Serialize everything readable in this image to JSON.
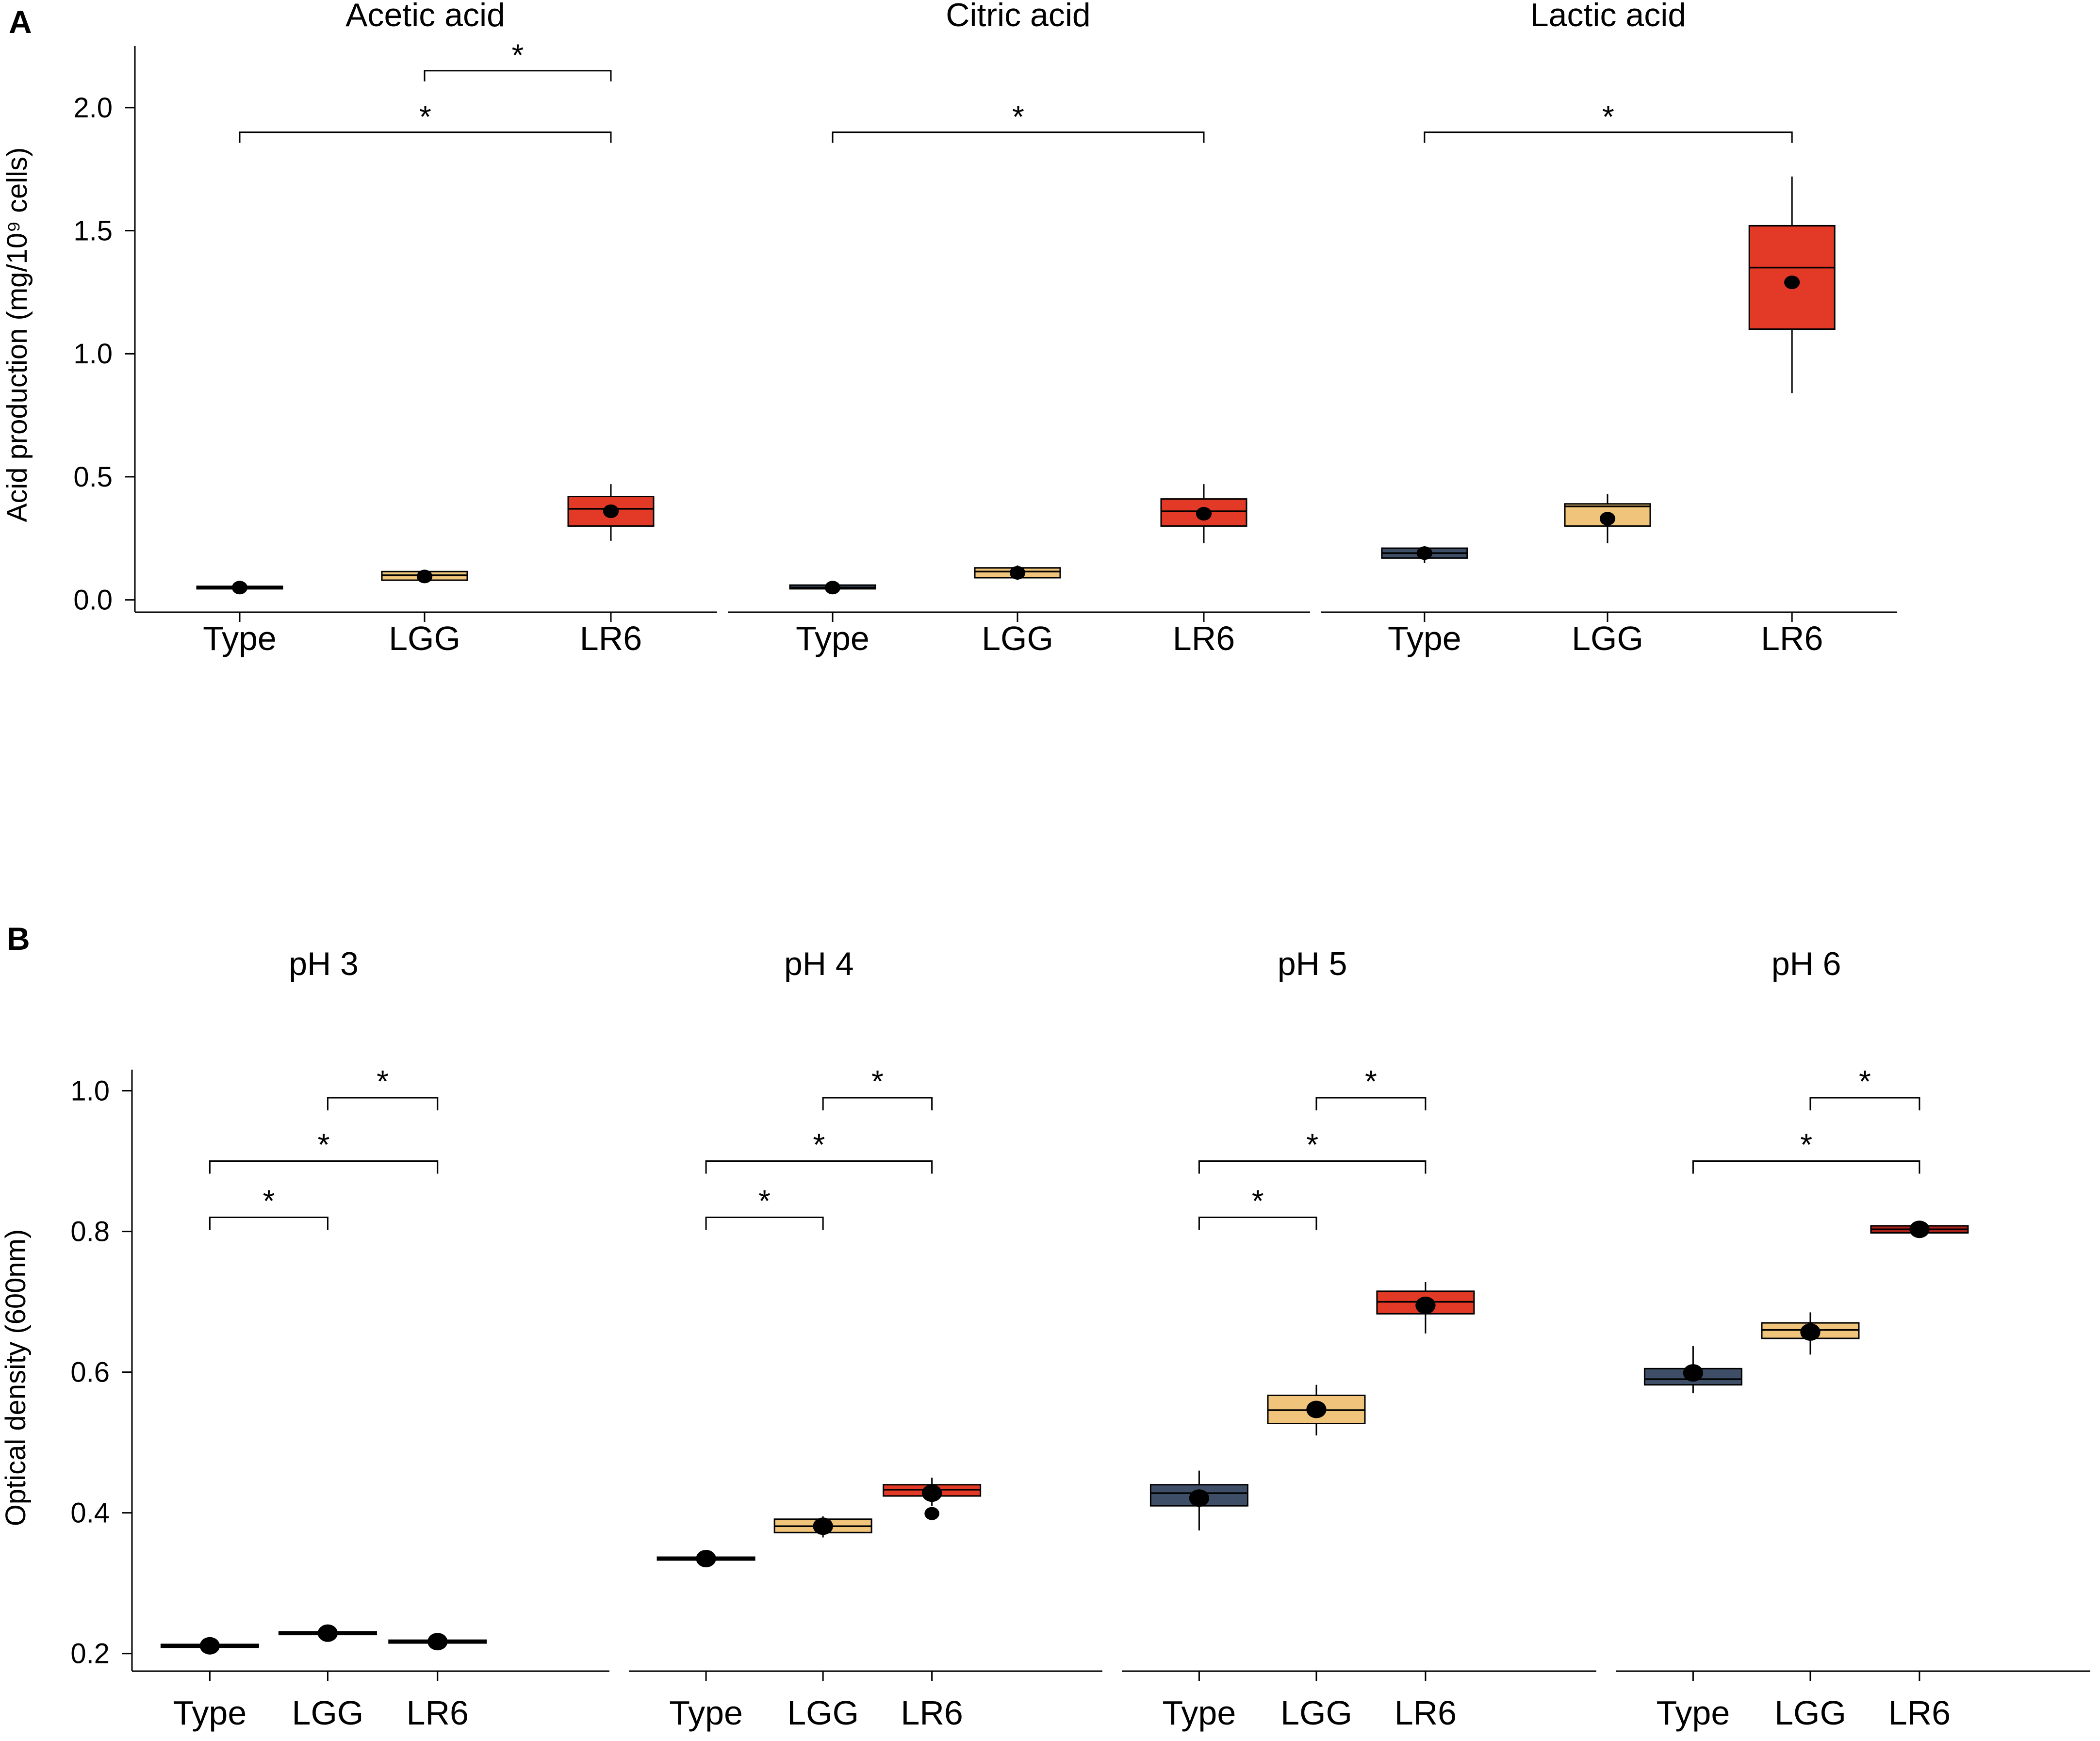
{
  "colors": {
    "Type": "#3e4e66",
    "LGG": "#f0c57b",
    "LR6_A": "#e23a27",
    "LR6_B": [
      "#e23a27",
      "#e23a27",
      "#e23a27",
      "#a8211b"
    ]
  },
  "chart_data": [
    {
      "type": "box",
      "panel_label": "A",
      "ylabel": "Acid production (mg/10⁹ cells)",
      "ylim": [
        -0.05,
        2.25
      ],
      "yticks": [
        0.0,
        0.5,
        1.0,
        1.5,
        2.0
      ],
      "ytick_labels": [
        "0.0",
        "0.5",
        "1.0",
        "1.5",
        "2.0"
      ],
      "categories": [
        "Type",
        "LGG",
        "LR6"
      ],
      "facets": [
        {
          "title": "Acetic acid",
          "boxes": [
            {
              "category": "Type",
              "q1": 0.045,
              "median": 0.05,
              "q3": 0.055,
              "whisker_low": 0.045,
              "whisker_high": 0.055,
              "mean": 0.05
            },
            {
              "category": "LGG",
              "q1": 0.08,
              "median": 0.1,
              "q3": 0.115,
              "whisker_low": 0.075,
              "whisker_high": 0.12,
              "mean": 0.095
            },
            {
              "category": "LR6",
              "q1": 0.3,
              "median": 0.37,
              "q3": 0.42,
              "whisker_low": 0.24,
              "whisker_high": 0.47,
              "mean": 0.36
            }
          ],
          "significance": [
            {
              "from": "LGG",
              "to": "LR6",
              "y": 2.15,
              "label": "*"
            },
            {
              "from": "Type",
              "to": "LR6",
              "y": 1.9,
              "label": "*"
            }
          ]
        },
        {
          "title": "Citric acid",
          "boxes": [
            {
              "category": "Type",
              "q1": 0.045,
              "median": 0.05,
              "q3": 0.06,
              "whisker_low": 0.04,
              "whisker_high": 0.06,
              "mean": 0.05
            },
            {
              "category": "LGG",
              "q1": 0.09,
              "median": 0.115,
              "q3": 0.13,
              "whisker_low": 0.08,
              "whisker_high": 0.14,
              "mean": 0.11
            },
            {
              "category": "LR6",
              "q1": 0.3,
              "median": 0.36,
              "q3": 0.41,
              "whisker_low": 0.23,
              "whisker_high": 0.47,
              "mean": 0.35
            }
          ],
          "significance": [
            {
              "from": "Type",
              "to": "LR6",
              "y": 1.9,
              "label": "*"
            }
          ]
        },
        {
          "title": "Lactic acid",
          "boxes": [
            {
              "category": "Type",
              "q1": 0.17,
              "median": 0.19,
              "q3": 0.21,
              "whisker_low": 0.15,
              "whisker_high": 0.22,
              "mean": 0.19
            },
            {
              "category": "LGG",
              "q1": 0.3,
              "median": 0.38,
              "q3": 0.39,
              "whisker_low": 0.23,
              "whisker_high": 0.43,
              "mean": 0.33
            },
            {
              "category": "LR6",
              "q1": 1.1,
              "median": 1.35,
              "q3": 1.52,
              "whisker_low": 0.84,
              "whisker_high": 1.72,
              "mean": 1.29
            }
          ],
          "significance": [
            {
              "from": "Type",
              "to": "LR6",
              "y": 1.9,
              "label": "*"
            }
          ]
        }
      ]
    },
    {
      "type": "box",
      "panel_label": "B",
      "ylabel": "Optical density (600nm)",
      "ylim": [
        0.175,
        1.03
      ],
      "yticks": [
        0.2,
        0.4,
        0.6,
        0.8,
        1.0
      ],
      "ytick_labels": [
        "0.2",
        "0.4",
        "0.6",
        "0.8",
        "1.0"
      ],
      "categories": [
        "Type",
        "LGG",
        "LR6"
      ],
      "facets": [
        {
          "title": "pH 3",
          "boxes": [
            {
              "category": "Type",
              "q1": 0.209,
              "median": 0.211,
              "q3": 0.213,
              "whisker_low": 0.208,
              "whisker_high": 0.215,
              "mean": 0.211
            },
            {
              "category": "LGG",
              "q1": 0.227,
              "median": 0.229,
              "q3": 0.231,
              "whisker_low": 0.226,
              "whisker_high": 0.233,
              "mean": 0.229
            },
            {
              "category": "LR6",
              "q1": 0.215,
              "median": 0.217,
              "q3": 0.219,
              "whisker_low": 0.214,
              "whisker_high": 0.221,
              "mean": 0.217
            }
          ],
          "significance": [
            {
              "from": "LGG",
              "to": "LR6",
              "y": 0.99,
              "label": "*"
            },
            {
              "from": "Type",
              "to": "LR6",
              "y": 0.9,
              "label": "*"
            },
            {
              "from": "Type",
              "to": "LGG",
              "y": 0.82,
              "label": "*"
            }
          ]
        },
        {
          "title": "pH 4",
          "boxes": [
            {
              "category": "Type",
              "q1": 0.333,
              "median": 0.335,
              "q3": 0.337,
              "whisker_low": 0.331,
              "whisker_high": 0.339,
              "mean": 0.335
            },
            {
              "category": "LGG",
              "q1": 0.372,
              "median": 0.381,
              "q3": 0.391,
              "whisker_low": 0.365,
              "whisker_high": 0.395,
              "mean": 0.381
            },
            {
              "category": "LR6",
              "q1": 0.424,
              "median": 0.433,
              "q3": 0.44,
              "whisker_low": 0.41,
              "whisker_high": 0.45,
              "mean": 0.428,
              "outliers": [
                0.399
              ]
            }
          ],
          "significance": [
            {
              "from": "LGG",
              "to": "LR6",
              "y": 0.99,
              "label": "*"
            },
            {
              "from": "Type",
              "to": "LR6",
              "y": 0.9,
              "label": "*"
            },
            {
              "from": "Type",
              "to": "LGG",
              "y": 0.82,
              "label": "*"
            }
          ]
        },
        {
          "title": "pH 5",
          "boxes": [
            {
              "category": "Type",
              "q1": 0.41,
              "median": 0.428,
              "q3": 0.44,
              "whisker_low": 0.375,
              "whisker_high": 0.46,
              "mean": 0.421
            },
            {
              "category": "LGG",
              "q1": 0.527,
              "median": 0.546,
              "q3": 0.567,
              "whisker_low": 0.51,
              "whisker_high": 0.582,
              "mean": 0.547
            },
            {
              "category": "LR6",
              "q1": 0.683,
              "median": 0.7,
              "q3": 0.715,
              "whisker_low": 0.655,
              "whisker_high": 0.728,
              "mean": 0.695
            }
          ],
          "significance": [
            {
              "from": "LGG",
              "to": "LR6",
              "y": 0.99,
              "label": "*"
            },
            {
              "from": "Type",
              "to": "LR6",
              "y": 0.9,
              "label": "*"
            },
            {
              "from": "Type",
              "to": "LGG",
              "y": 0.82,
              "label": "*"
            }
          ]
        },
        {
          "title": "pH 6",
          "boxes": [
            {
              "category": "Type",
              "q1": 0.582,
              "median": 0.59,
              "q3": 0.605,
              "whisker_low": 0.57,
              "whisker_high": 0.637,
              "mean": 0.599
            },
            {
              "category": "LGG",
              "q1": 0.648,
              "median": 0.66,
              "q3": 0.67,
              "whisker_low": 0.625,
              "whisker_high": 0.685,
              "mean": 0.657
            },
            {
              "category": "LR6",
              "q1": 0.798,
              "median": 0.803,
              "q3": 0.808,
              "whisker_low": 0.796,
              "whisker_high": 0.81,
              "mean": 0.803
            }
          ],
          "significance": [
            {
              "from": "LGG",
              "to": "LR6",
              "y": 0.99,
              "label": "*"
            },
            {
              "from": "Type",
              "to": "LR6",
              "y": 0.9,
              "label": "*"
            }
          ]
        }
      ]
    }
  ]
}
